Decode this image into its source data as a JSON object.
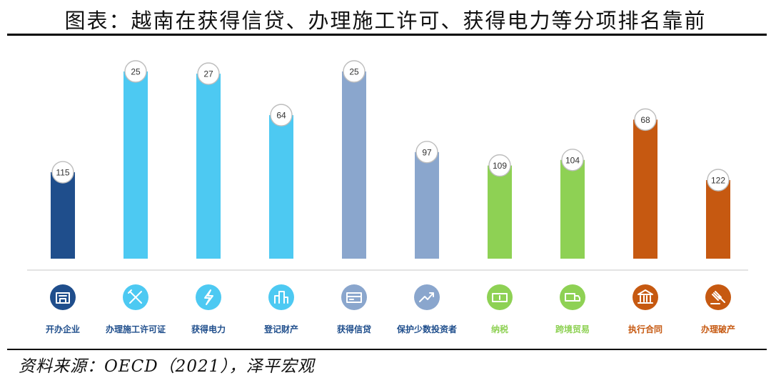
{
  "header": {
    "title": "图表：越南在获得信贷、办理施工许可、获得电力等分项排名靠前"
  },
  "footer": {
    "source": "资料来源：OECD（2021），泽平宏观"
  },
  "chart_data": {
    "type": "bar",
    "title": "",
    "xlabel": "",
    "ylabel": "",
    "categories": [
      "开办企业",
      "办理施工许可证",
      "获得电力",
      "登记财产",
      "获得信贷",
      "保护少数投资者",
      "纳税",
      "跨境贸易",
      "执行合同",
      "办理破产"
    ],
    "values": [
      115,
      25,
      27,
      64,
      25,
      97,
      109,
      104,
      68,
      122
    ],
    "note_on_scale": "ranking (lower rank = taller bar)",
    "colors": [
      "#1f4e8c",
      "#4dc9f2",
      "#4dc9f2",
      "#4dc9f2",
      "#8aa6cd",
      "#8aa6cd",
      "#8ed154",
      "#8ed154",
      "#c65911",
      "#c65911"
    ],
    "icons": [
      "building-icon",
      "tools-icon",
      "lightning-icon",
      "city-icon",
      "card-icon",
      "trend-icon",
      "money-icon",
      "truck-icon",
      "courthouse-icon",
      "gavel-icon"
    ],
    "grid": false,
    "legend": "none"
  }
}
